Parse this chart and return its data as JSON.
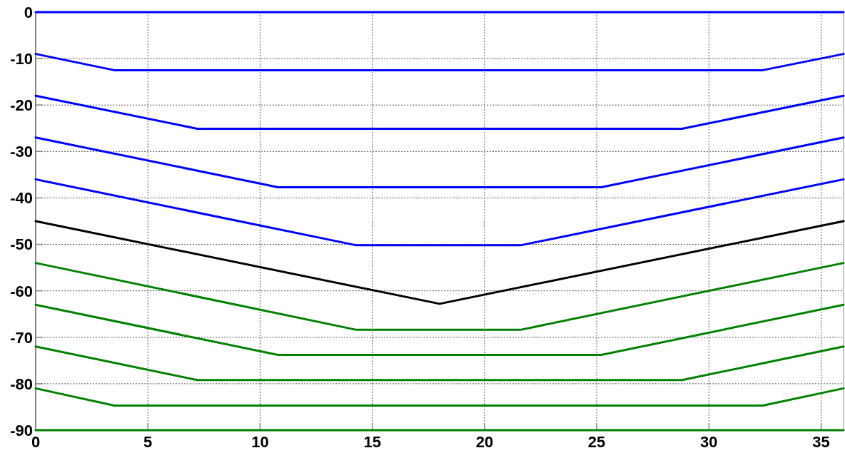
{
  "chart_data": {
    "type": "line",
    "xlim": [
      0,
      36
    ],
    "ylim": [
      -90,
      0
    ],
    "xticks": [
      0,
      5,
      10,
      15,
      20,
      25,
      30,
      35
    ],
    "yticks": [
      -90,
      -80,
      -70,
      -60,
      -50,
      -40,
      -30,
      -20,
      -10,
      0
    ],
    "grid": true,
    "series": [
      {
        "color": "#0000ff",
        "x": [
          0,
          36
        ],
        "values": [
          0,
          0
        ]
      },
      {
        "color": "#0000ff",
        "x": [
          0,
          3.5,
          32.4,
          36
        ],
        "values": [
          -9,
          -12.5,
          -12.5,
          -9
        ]
      },
      {
        "color": "#0000ff",
        "x": [
          0,
          7.2,
          28.8,
          36
        ],
        "values": [
          -18,
          -25.1,
          -25.1,
          -18
        ]
      },
      {
        "color": "#0000ff",
        "x": [
          0,
          10.8,
          25.2,
          36
        ],
        "values": [
          -27,
          -37.7,
          -37.7,
          -27
        ]
      },
      {
        "color": "#0000ff",
        "x": [
          0,
          14.3,
          21.6,
          36
        ],
        "values": [
          -36,
          -50.2,
          -50.2,
          -36
        ]
      },
      {
        "color": "#000000",
        "x": [
          0,
          18,
          36
        ],
        "values": [
          -45,
          -62.8,
          -45
        ]
      },
      {
        "color": "#008000",
        "x": [
          0,
          14.3,
          21.6,
          36
        ],
        "values": [
          -54,
          -68.4,
          -68.4,
          -54
        ]
      },
      {
        "color": "#008000",
        "x": [
          0,
          10.8,
          25.2,
          36
        ],
        "values": [
          -63,
          -73.8,
          -73.8,
          -63
        ]
      },
      {
        "color": "#008000",
        "x": [
          0,
          7.2,
          28.8,
          36
        ],
        "values": [
          -72,
          -79.2,
          -79.2,
          -72
        ]
      },
      {
        "color": "#008000",
        "x": [
          0,
          3.5,
          32.4,
          36
        ],
        "values": [
          -81,
          -84.7,
          -84.7,
          -81
        ]
      },
      {
        "color": "#008000",
        "x": [
          0,
          36
        ],
        "values": [
          -90,
          -90
        ]
      }
    ]
  }
}
